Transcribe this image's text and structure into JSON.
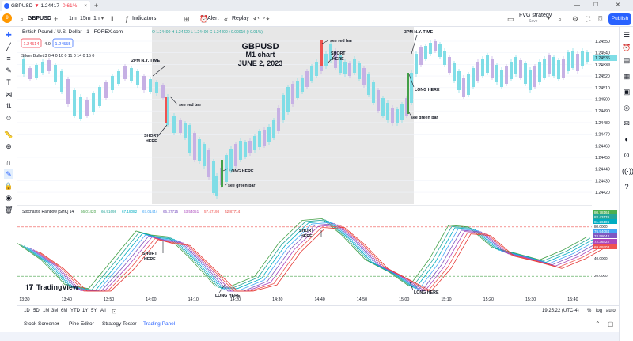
{
  "browser": {
    "tab_title": "GBPUSD",
    "tab_price": "1.24417",
    "tab_change": "-0.61%",
    "newtab": "+"
  },
  "toolbar": {
    "avatar_badge": "9",
    "symbol": "GBPUSD",
    "add": "+",
    "intervals": [
      "1m",
      "15m",
      "1h"
    ],
    "indicators_label": "Indicators",
    "alert_label": "Alert",
    "replay_label": "Replay",
    "strategy_name": "FVG strategy",
    "strategy_status": "Save",
    "publish_label": "Publish"
  },
  "legend": {
    "title": "British Pound / U.S. Dollar · 1 · FOREX.com",
    "ohlc": "O 1.24400  H 1.24420  L 1.24400  C 1.24400 +0.00010 (+0.01%)",
    "bid": "1.24514",
    "spread": "4.0",
    "ask": "1.24555",
    "indicator": "Silver Bullet 3 0 4 0 10 0 11 0 14 0 15 0"
  },
  "oscillator": {
    "title": "Stochastic Rainbow [SHK] 14",
    "values": [
      "66.01420",
      "66.91698",
      "67.18082",
      "67.01444",
      "65.37715",
      "63.54051",
      "57.47198",
      "52.87714"
    ],
    "value_colors": [
      "#43a047",
      "#26a69a",
      "#00acc1",
      "#42a5f5",
      "#7e57c2",
      "#ab47bc",
      "#ef5350",
      "#e53935"
    ],
    "axis_labels": [
      {
        "text": "80.78164",
        "color": "#4caf50"
      },
      {
        "text": "82.43176",
        "color": "#26a69a"
      },
      {
        "text": "81.26106",
        "color": "#00acc1"
      },
      {
        "text": "80.0000",
        "color": "#555555"
      },
      {
        "text": "76.94084",
        "color": "#42a5f5"
      },
      {
        "text": "74.58042",
        "color": "#7e57c2"
      },
      {
        "text": "72.36422",
        "color": "#ab47bc"
      },
      {
        "text": "69.69703",
        "color": "#ef5350"
      },
      {
        "text": "40.0000",
        "color": "#555555"
      },
      {
        "text": "20.0000",
        "color": "#555555"
      }
    ]
  },
  "annotations": {
    "chart_title": "GBPUSD",
    "chart_subtitle": "M1 chart",
    "chart_date": "JUNE 2, 2023",
    "ny_time_1": "2PM N.Y. TIME",
    "ny_time_2": "3PM  N.Y.  TIME",
    "red_bar_1": "see red bar",
    "red_bar_2": "see red bar",
    "short_1": "SHORT\nHERE",
    "short_2": "SHORT\nHERE",
    "long_1": "LONG  HERE",
    "long_2": "LONG  HERE",
    "green_bar_1": "see green bar",
    "green_bar_2": "see green bar",
    "osc_short_1": "SHORT\nHERE",
    "osc_short_2": "SHORT\nHERE",
    "osc_long_1": "LONG  HERE",
    "osc_long_2": "LONG  HERE"
  },
  "price_axis": {
    "labels": [
      "1.24550",
      "1.24540",
      "1.24530",
      "1.24520",
      "1.24510",
      "1.24500",
      "1.24490",
      "1.24480",
      "1.24470",
      "1.24460",
      "1.24450",
      "1.24440",
      "1.24430",
      "1.24420"
    ],
    "current_price": "1.24536",
    "current_price_2": "1.24521"
  },
  "time_axis": {
    "labels": [
      "13:30",
      "13:40",
      "13:50",
      "14:00",
      "14:10",
      "14:20",
      "14:30",
      "14:40",
      "14:50",
      "15:00",
      "15:10",
      "15:20",
      "15:30",
      "15:40"
    ]
  },
  "watermark": "TradingView",
  "ranges": [
    "1D",
    "5D",
    "1M",
    "3M",
    "6M",
    "YTD",
    "1Y",
    "5Y",
    "All"
  ],
  "status": {
    "clock": "19:25:22 (UTC-4)",
    "pct": "%",
    "log": "log",
    "auto": "auto"
  },
  "panels": [
    "Stock Screener",
    "Pine Editor",
    "Strategy Tester",
    "Trading Panel"
  ],
  "colors": {
    "up_candle": "#7fdde6",
    "down_candle": "#c6b0e4",
    "red_marker": "#ef5350",
    "green_marker": "#43a047",
    "highlight": "#e7e7e7"
  },
  "icons": {
    "left": [
      "crosshair-icon",
      "trendline-icon",
      "fib-icon",
      "brush-icon",
      "text-icon",
      "pattern-icon",
      "forecast-icon",
      "emoji-icon",
      "ruler-icon",
      "zoom-icon",
      "magnet-icon",
      "draw-lock-icon",
      "lock-icon",
      "eye-icon",
      "trash-icon"
    ],
    "right": [
      "watchlist-icon",
      "alerts-icon",
      "datawindow-icon",
      "news-icon",
      "calendar-icon",
      "ideas-icon",
      "chat-icon",
      "streams-icon",
      "notification-icon",
      "help-icon"
    ]
  }
}
